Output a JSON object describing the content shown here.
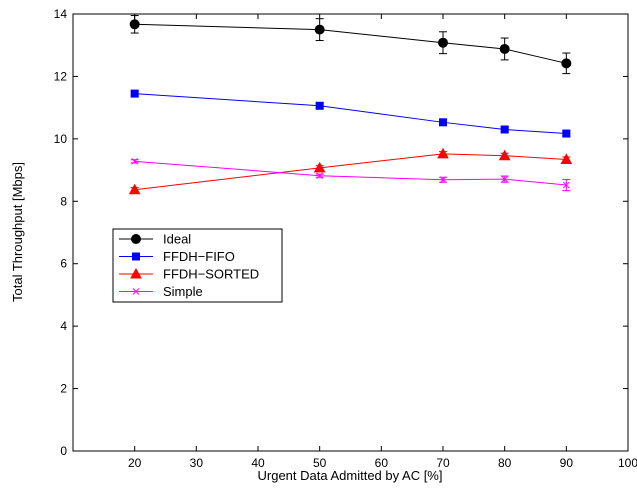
{
  "chart_data": {
    "type": "line",
    "title": "",
    "xlabel": "Urgent Data Admitted by AC [%]",
    "ylabel": "Total Throughput [Mbps]",
    "xlim": [
      10,
      100
    ],
    "ylim": [
      0,
      14
    ],
    "xticks": [
      20,
      30,
      40,
      50,
      60,
      70,
      80,
      90,
      100
    ],
    "yticks": [
      0,
      2,
      4,
      6,
      8,
      10,
      12,
      14
    ],
    "grid": false,
    "legend_position": "left",
    "x": [
      20,
      50,
      70,
      80,
      90
    ],
    "series": [
      {
        "name": "Ideal",
        "color": "#000000",
        "marker": "circle",
        "values": [
          13.67,
          13.5,
          13.08,
          12.88,
          12.42
        ],
        "errors": [
          0.28,
          0.35,
          0.35,
          0.35,
          0.33
        ]
      },
      {
        "name": "FFDH−FIFO",
        "color": "#0000ff",
        "marker": "square",
        "values": [
          11.45,
          11.06,
          10.53,
          10.3,
          10.17
        ],
        "errors": [
          0.08,
          0.07,
          0.08,
          0.08,
          0.08
        ]
      },
      {
        "name": "FFDH−SORTED",
        "color": "#ff0000",
        "marker": "triangle",
        "values": [
          8.37,
          9.07,
          9.52,
          9.46,
          9.34
        ],
        "errors": [
          0.07,
          0.07,
          0.07,
          0.08,
          0.08
        ]
      },
      {
        "name": "Simple",
        "color": "#ff00ff",
        "marker": "x",
        "values": [
          9.28,
          8.82,
          8.69,
          8.71,
          8.52
        ],
        "errors": [
          0.05,
          0.05,
          0.08,
          0.1,
          0.18
        ]
      }
    ]
  }
}
